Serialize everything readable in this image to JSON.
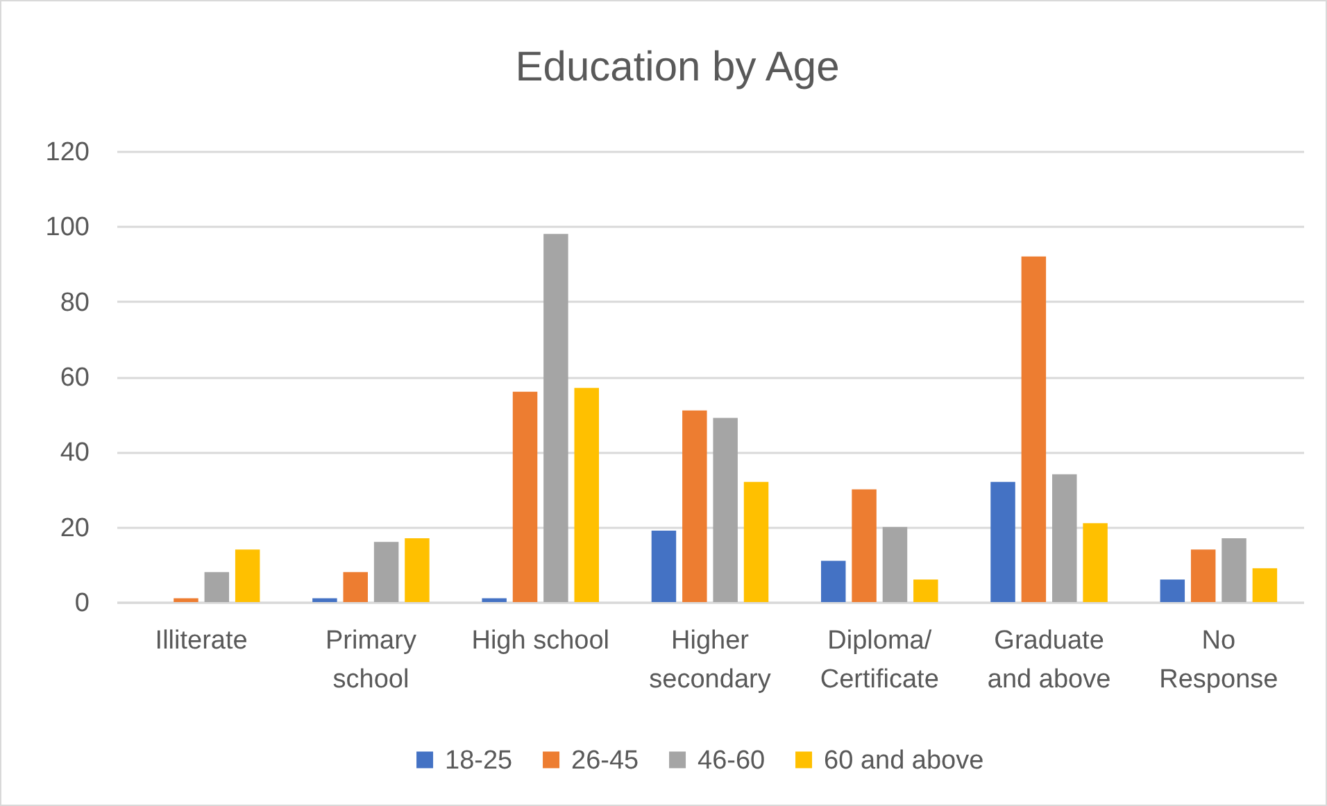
{
  "chart_data": {
    "type": "bar",
    "title": "Education by Age",
    "categories": [
      "Illiterate",
      "Primary school",
      "High school",
      "Higher secondary",
      "Diploma/Certificate",
      "Graduate and above",
      "No Response"
    ],
    "series": [
      {
        "name": "18-25",
        "color": "#4472c4",
        "values": [
          0,
          1,
          1,
          19,
          11,
          32,
          6
        ]
      },
      {
        "name": "26-45",
        "color": "#ed7d31",
        "values": [
          1,
          8,
          56,
          51,
          30,
          92,
          14
        ]
      },
      {
        "name": "46-60",
        "color": "#a5a5a5",
        "values": [
          8,
          16,
          98,
          49,
          20,
          34,
          17
        ]
      },
      {
        "name": "60 and above",
        "color": "#ffc000",
        "values": [
          14,
          17,
          57,
          32,
          6,
          21,
          9
        ]
      }
    ],
    "ylim": [
      0,
      120
    ],
    "yticks": [
      0,
      20,
      40,
      60,
      80,
      100,
      120
    ],
    "grid": "y",
    "legend": "bottom"
  }
}
